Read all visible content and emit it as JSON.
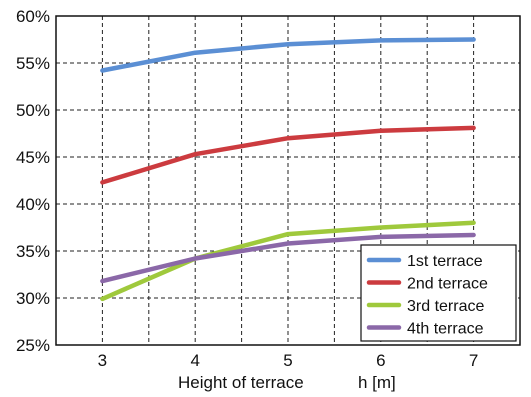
{
  "chart_data": {
    "type": "line",
    "title": "",
    "xlabel": "Height of terrace",
    "xlabel_unit": "h [m]",
    "ylabel": "",
    "x": [
      3,
      4,
      5,
      6,
      7
    ],
    "xlim": [
      2.5,
      7.5
    ],
    "ylim": [
      25,
      60
    ],
    "y_ticks": [
      "25%",
      "30%",
      "35%",
      "40%",
      "45%",
      "50%",
      "55%",
      "60%"
    ],
    "x_ticks": [
      "3",
      "4",
      "5",
      "6",
      "7"
    ],
    "grid": true,
    "legend_position": "bottom-right",
    "series": [
      {
        "name": "1st terrace",
        "color": "#5b8fd4",
        "values": [
          54.2,
          56.1,
          57.0,
          57.4,
          57.5
        ]
      },
      {
        "name": "2nd terrace",
        "color": "#cc3b3f",
        "values": [
          42.3,
          45.3,
          47.0,
          47.8,
          48.1
        ]
      },
      {
        "name": "3rd terrace",
        "color": "#9fc93c",
        "values": [
          29.9,
          34.2,
          36.8,
          37.5,
          38.0
        ]
      },
      {
        "name": "4th terrace",
        "color": "#8b68a8",
        "values": [
          31.8,
          34.2,
          35.8,
          36.5,
          36.7
        ]
      }
    ]
  }
}
